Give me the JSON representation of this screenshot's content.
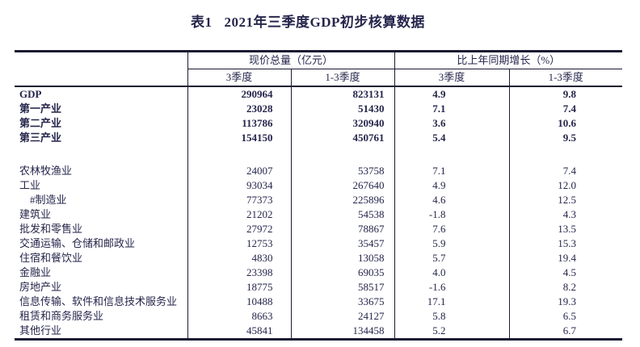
{
  "colors": {
    "background": "#ffffff",
    "text": "#26264c",
    "border": "#1a1a33"
  },
  "title": {
    "prefix": "表1",
    "main": "2021年三季度GDP初步核算数据"
  },
  "table": {
    "column_groups": [
      {
        "label": "现价总量（亿元）"
      },
      {
        "label": "比上年同期增长（%）"
      }
    ],
    "sub_headers": [
      "3季度",
      "1-3季度",
      "3季度",
      "1-3季度"
    ],
    "rows": [
      {
        "label": "GDP",
        "bold": true,
        "indent": false,
        "values": [
          "290964",
          "823131",
          "4.9",
          "9.8"
        ]
      },
      {
        "label": "第一产业",
        "bold": true,
        "indent": false,
        "values": [
          "23028",
          "51430",
          "7.1",
          "7.4"
        ]
      },
      {
        "label": "第二产业",
        "bold": true,
        "indent": false,
        "values": [
          "113786",
          "320940",
          "3.6",
          "10.6"
        ]
      },
      {
        "label": "第三产业",
        "bold": true,
        "indent": false,
        "values": [
          "154150",
          "450761",
          "5.4",
          "9.5"
        ]
      },
      {
        "spacer": true
      },
      {
        "label": "农林牧渔业",
        "bold": false,
        "indent": false,
        "values": [
          "24007",
          "53758",
          "7.1",
          "7.4"
        ]
      },
      {
        "label": "工业",
        "bold": false,
        "indent": false,
        "values": [
          "93034",
          "267640",
          "4.9",
          "12.0"
        ]
      },
      {
        "label": "#制造业",
        "bold": false,
        "indent": true,
        "values": [
          "77373",
          "225896",
          "4.6",
          "12.5"
        ]
      },
      {
        "label": "建筑业",
        "bold": false,
        "indent": false,
        "values": [
          "21202",
          "54538",
          "-1.8",
          "4.3"
        ]
      },
      {
        "label": "批发和零售业",
        "bold": false,
        "indent": false,
        "values": [
          "27972",
          "78867",
          "7.6",
          "13.5"
        ]
      },
      {
        "label": "交通运输、仓储和邮政业",
        "bold": false,
        "indent": false,
        "values": [
          "12753",
          "35457",
          "5.9",
          "15.3"
        ]
      },
      {
        "label": "住宿和餐饮业",
        "bold": false,
        "indent": false,
        "values": [
          "4830",
          "13058",
          "5.7",
          "19.4"
        ]
      },
      {
        "label": "金融业",
        "bold": false,
        "indent": false,
        "values": [
          "23398",
          "69035",
          "4.0",
          "4.5"
        ]
      },
      {
        "label": "房地产业",
        "bold": false,
        "indent": false,
        "values": [
          "18775",
          "58517",
          "-1.6",
          "8.2"
        ]
      },
      {
        "label": "信息传输、软件和信息技术服务业",
        "bold": false,
        "indent": false,
        "values": [
          "10488",
          "33675",
          "17.1",
          "19.3"
        ]
      },
      {
        "label": "租赁和商务服务业",
        "bold": false,
        "indent": false,
        "values": [
          "8663",
          "24127",
          "5.8",
          "6.5"
        ]
      },
      {
        "label": "其他行业",
        "bold": false,
        "indent": false,
        "values": [
          "45841",
          "134458",
          "5.2",
          "6.7"
        ]
      }
    ]
  }
}
